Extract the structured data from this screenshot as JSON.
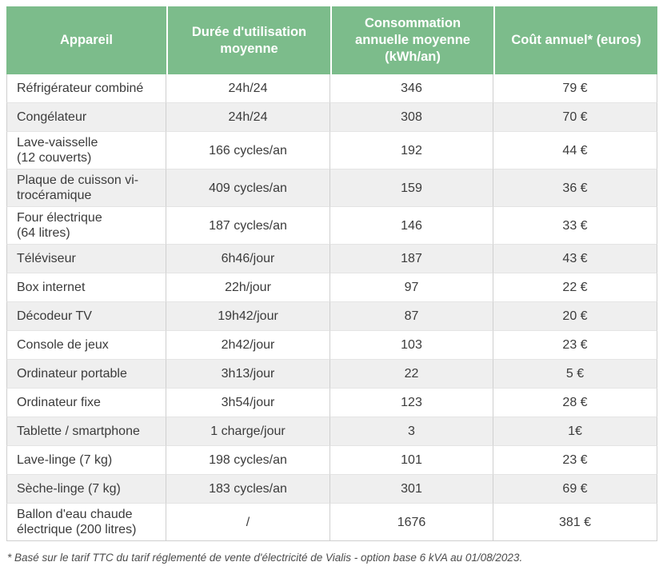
{
  "colors": {
    "header_bg": "#7CBC8B",
    "header_text": "#FFFFFF",
    "row_bg": "#FFFFFF",
    "row_alt_bg": "#EFEFEF",
    "column_border": "#CFCFCF",
    "row_border": "#E4E4E4",
    "body_text": "#3B3B3B",
    "footnote_text": "#4C4C4C"
  },
  "table": {
    "headers": {
      "appliance": "Appareil",
      "duration": "Durée d'utilisation moyenne",
      "consumption": "Consommation annuelle moyenne (kWh/an)",
      "cost": "Coût annuel* (euros)"
    },
    "rows": [
      {
        "appliance_lines": [
          "Réfrigérateur combiné"
        ],
        "duration": "24h/24",
        "consumption": "346",
        "cost": "79 €"
      },
      {
        "appliance_lines": [
          "Congélateur"
        ],
        "duration": "24h/24",
        "consumption": "308",
        "cost": "70 €"
      },
      {
        "appliance_lines": [
          "Lave-vaisselle",
          "(12 couverts)"
        ],
        "duration": "166 cycles/an",
        "consumption": "192",
        "cost": "44 €"
      },
      {
        "appliance_lines": [
          "Plaque de cuisson vi-",
          "trocéramique"
        ],
        "duration": "409 cycles/an",
        "consumption": "159",
        "cost": "36 €"
      },
      {
        "appliance_lines": [
          "Four électrique",
          "(64 litres)"
        ],
        "duration": "187 cycles/an",
        "consumption": "146",
        "cost": "33 €"
      },
      {
        "appliance_lines": [
          "Téléviseur"
        ],
        "duration": "6h46/jour",
        "consumption": "187",
        "cost": "43 €"
      },
      {
        "appliance_lines": [
          "Box internet"
        ],
        "duration": "22h/jour",
        "consumption": "97",
        "cost": "22 €"
      },
      {
        "appliance_lines": [
          "Décodeur TV"
        ],
        "duration": "19h42/jour",
        "consumption": "87",
        "cost": "20 €"
      },
      {
        "appliance_lines": [
          "Console de jeux"
        ],
        "duration": "2h42/jour",
        "consumption": "103",
        "cost": "23 €"
      },
      {
        "appliance_lines": [
          "Ordinateur portable"
        ],
        "duration": "3h13/jour",
        "consumption": "22",
        "cost": "5 €"
      },
      {
        "appliance_lines": [
          "Ordinateur fixe"
        ],
        "duration": "3h54/jour",
        "consumption": "123",
        "cost": "28 €"
      },
      {
        "appliance_lines": [
          "Tablette / smartphone"
        ],
        "duration": "1 charge/jour",
        "consumption": "3",
        "cost": "1€"
      },
      {
        "appliance_lines": [
          "Lave-linge (7 kg)"
        ],
        "duration": "198 cycles/an",
        "consumption": "101",
        "cost": "23 €"
      },
      {
        "appliance_lines": [
          "Sèche-linge (7 kg)"
        ],
        "duration": "183 cycles/an",
        "consumption": "301",
        "cost": "69 €"
      },
      {
        "appliance_lines": [
          "Ballon d'eau chaude",
          "électrique (200 litres)"
        ],
        "duration": "/",
        "consumption": "1676",
        "cost": "381 €"
      }
    ]
  },
  "footnote": {
    "text": "* Basé sur le tarif TTC du tarif réglementé de vente d'électricité de Vialis - option base 6 kVA au 01/08/2023."
  },
  "chart_data": {
    "type": "table",
    "title": "",
    "columns": [
      "Appareil",
      "Durée d'utilisation moyenne",
      "Consommation annuelle moyenne (kWh/an)",
      "Coût annuel* (euros)"
    ],
    "rows": [
      [
        "Réfrigérateur combiné",
        "24h/24",
        346,
        79
      ],
      [
        "Congélateur",
        "24h/24",
        308,
        70
      ],
      [
        "Lave-vaisselle (12 couverts)",
        "166 cycles/an",
        192,
        44
      ],
      [
        "Plaque de cuisson vitrocéramique",
        "409 cycles/an",
        159,
        36
      ],
      [
        "Four électrique (64 litres)",
        "187 cycles/an",
        146,
        33
      ],
      [
        "Téléviseur",
        "6h46/jour",
        187,
        43
      ],
      [
        "Box internet",
        "22h/jour",
        97,
        22
      ],
      [
        "Décodeur TV",
        "19h42/jour",
        87,
        20
      ],
      [
        "Console de jeux",
        "2h42/jour",
        103,
        23
      ],
      [
        "Ordinateur portable",
        "3h13/jour",
        22,
        5
      ],
      [
        "Ordinateur fixe",
        "3h54/jour",
        123,
        28
      ],
      [
        "Tablette / smartphone",
        "1 charge/jour",
        3,
        1
      ],
      [
        "Lave-linge (7 kg)",
        "198 cycles/an",
        101,
        23
      ],
      [
        "Sèche-linge (7 kg)",
        "183 cycles/an",
        301,
        69
      ],
      [
        "Ballon d'eau chaude électrique (200 litres)",
        "/",
        1676,
        381
      ]
    ],
    "units": {
      "consumption": "kWh/an",
      "cost": "euros"
    },
    "footnote": "* Basé sur le tarif TTC du tarif réglementé de vente d'électricité de Vialis - option base 6 kVA au 01/08/2023."
  }
}
